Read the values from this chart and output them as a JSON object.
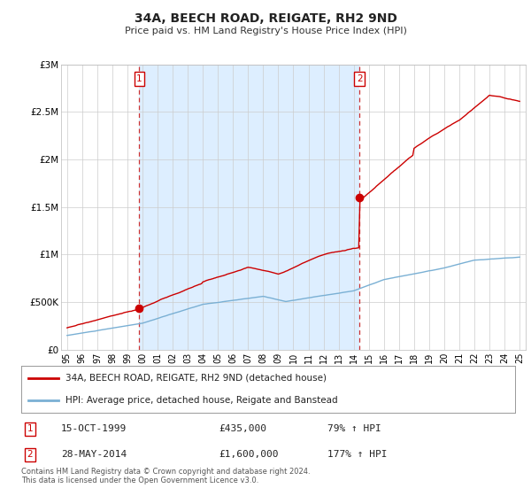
{
  "title": "34A, BEECH ROAD, REIGATE, RH2 9ND",
  "subtitle": "Price paid vs. HM Land Registry's House Price Index (HPI)",
  "ylabel_ticks": [
    "£0",
    "£500K",
    "£1M",
    "£1.5M",
    "£2M",
    "£2.5M",
    "£3M"
  ],
  "ytick_values": [
    0,
    500000,
    1000000,
    1500000,
    2000000,
    2500000,
    3000000
  ],
  "ylim": [
    0,
    3000000
  ],
  "xlim_start": 1994.6,
  "xlim_end": 2025.4,
  "sale1_x": 1999.79,
  "sale1_y": 435000,
  "sale1_label": "1",
  "sale2_x": 2014.38,
  "sale2_y": 1600000,
  "sale2_label": "2",
  "red_line_color": "#cc0000",
  "blue_line_color": "#7ab0d4",
  "shade_color": "#ddeeff",
  "dashed_line_color": "#cc3333",
  "marker_box_color": "#cc0000",
  "legend1": "34A, BEECH ROAD, REIGATE, RH2 9ND (detached house)",
  "legend2": "HPI: Average price, detached house, Reigate and Banstead",
  "table_row1": [
    "1",
    "15-OCT-1999",
    "£435,000",
    "79% ↑ HPI"
  ],
  "table_row2": [
    "2",
    "28-MAY-2014",
    "£1,600,000",
    "177% ↑ HPI"
  ],
  "footer": "Contains HM Land Registry data © Crown copyright and database right 2024.\nThis data is licensed under the Open Government Licence v3.0.",
  "bg_color": "#ffffff",
  "plot_bg_color": "#ffffff",
  "grid_color": "#cccccc"
}
